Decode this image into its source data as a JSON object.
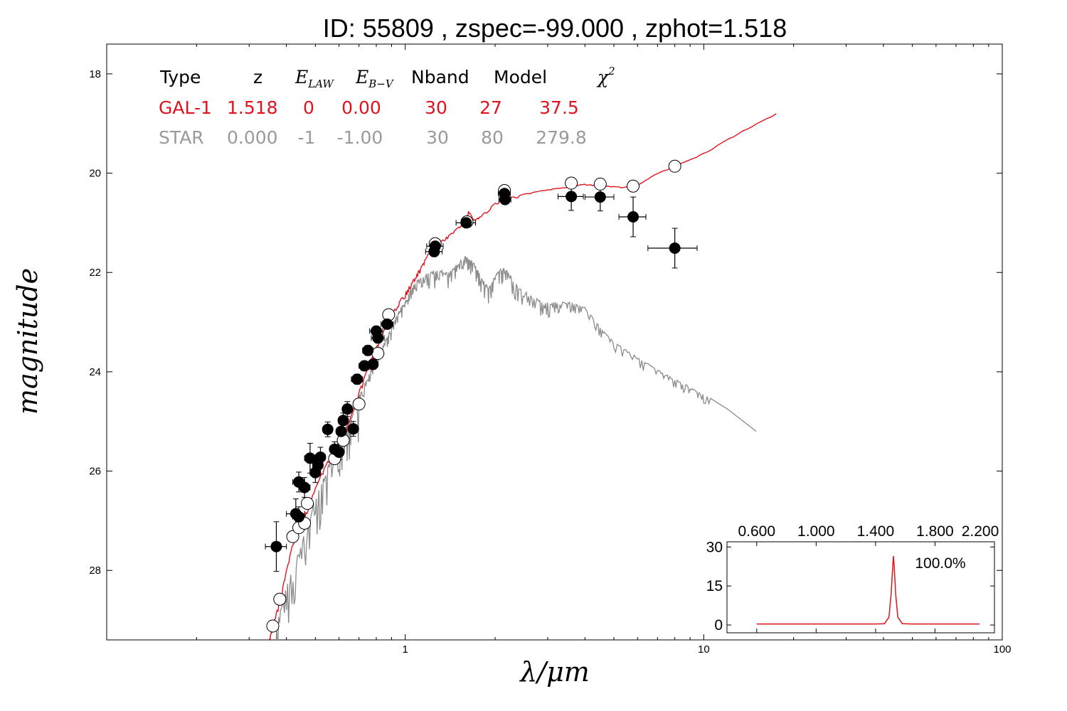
{
  "title": "ID:  55809 , zspec=-99.000 , zphot=1.518",
  "colors": {
    "galaxy": "#e0141e",
    "star": "#8c8c8c",
    "points": "#000000",
    "model_points": "#ffffff"
  },
  "chart_data": [
    {
      "type": "scatter",
      "xlabel": "λ/μm",
      "ylabel": "magnitude",
      "xscale": "log",
      "xlim": [
        0.1,
        100
      ],
      "ylim": [
        29.4,
        17.4
      ],
      "y_inverted": true,
      "xtick_labels": [
        "1",
        "10",
        "100"
      ],
      "ytick_labels": [
        "18",
        "20",
        "22",
        "24",
        "26",
        "28"
      ],
      "fit_table": {
        "headers": {
          "type": "Type",
          "z": "z",
          "elaw": "E",
          "elaw_sub": "LAW",
          "ebv": "E",
          "ebv_sub": "B−V",
          "nband": "Nband",
          "model": "Model",
          "chi2": "χ",
          "chi2_sup": "2"
        },
        "rows": [
          {
            "type": "GAL-1",
            "z": "1.518",
            "elaw": "0",
            "ebv": "0.00",
            "nband": "30",
            "model": "27",
            "chi2": "37.5",
            "color": "#e0141e"
          },
          {
            "type": "STAR",
            "z": "0.000",
            "elaw": "-1",
            "ebv": "-1.00",
            "nband": "30",
            "model": "80",
            "chi2": "279.8",
            "color": "#9a9a9a"
          }
        ]
      },
      "observed_points": [
        {
          "x": 0.37,
          "y": 27.52,
          "xerr": 0.03,
          "yerr": 0.5
        },
        {
          "x": 0.43,
          "y": 26.86,
          "xerr": 0.03,
          "yerr": 0.3
        },
        {
          "x": 0.44,
          "y": 26.92,
          "xerr": 0.02,
          "yerr": 0.2
        },
        {
          "x": 0.44,
          "y": 26.22,
          "xerr": 0.02,
          "yerr": 0.2
        },
        {
          "x": 0.46,
          "y": 26.33,
          "xerr": 0.02,
          "yerr": 0.2
        },
        {
          "x": 0.48,
          "y": 25.74,
          "xerr": 0.02,
          "yerr": 0.3
        },
        {
          "x": 0.5,
          "y": 26.03,
          "xerr": 0.02,
          "yerr": 0.2
        },
        {
          "x": 0.51,
          "y": 25.88,
          "xerr": 0.02,
          "yerr": 0.2
        },
        {
          "x": 0.52,
          "y": 25.72,
          "xerr": 0.02,
          "yerr": 0.2
        },
        {
          "x": 0.55,
          "y": 25.16,
          "xerr": 0.02,
          "yerr": 0.15
        },
        {
          "x": 0.58,
          "y": 25.56,
          "xerr": 0.02,
          "yerr": 0.15
        },
        {
          "x": 0.6,
          "y": 25.62,
          "xerr": 0.02,
          "yerr": 0.15
        },
        {
          "x": 0.61,
          "y": 25.2,
          "xerr": 0.02,
          "yerr": 0.15
        },
        {
          "x": 0.62,
          "y": 24.98,
          "xerr": 0.02,
          "yerr": 0.15
        },
        {
          "x": 0.64,
          "y": 24.75,
          "xerr": 0.02,
          "yerr": 0.15
        },
        {
          "x": 0.67,
          "y": 25.15,
          "xerr": 0.02,
          "yerr": 0.15
        },
        {
          "x": 0.69,
          "y": 24.15,
          "xerr": 0.03,
          "yerr": 0.1
        },
        {
          "x": 0.73,
          "y": 23.88,
          "xerr": 0.03,
          "yerr": 0.1
        },
        {
          "x": 0.75,
          "y": 23.57,
          "xerr": 0.03,
          "yerr": 0.1
        },
        {
          "x": 0.78,
          "y": 23.85,
          "xerr": 0.03,
          "yerr": 0.1
        },
        {
          "x": 0.8,
          "y": 23.18,
          "xerr": 0.04,
          "yerr": 0.1
        },
        {
          "x": 0.81,
          "y": 23.32,
          "xerr": 0.04,
          "yerr": 0.1
        },
        {
          "x": 0.87,
          "y": 23.04,
          "xerr": 0.04,
          "yerr": 0.1
        },
        {
          "x": 1.25,
          "y": 21.58,
          "xerr": 0.08,
          "yerr": 0.1
        },
        {
          "x": 1.26,
          "y": 21.47,
          "xerr": 0.08,
          "yerr": 0.1
        },
        {
          "x": 1.6,
          "y": 21.0,
          "xerr": 0.12,
          "yerr": 0.08
        },
        {
          "x": 2.15,
          "y": 20.41,
          "xerr": 0.1,
          "yerr": 0.08
        },
        {
          "x": 2.16,
          "y": 20.53,
          "xerr": 0.1,
          "yerr": 0.08
        },
        {
          "x": 3.6,
          "y": 20.47,
          "xerr": 0.35,
          "yerr": 0.28
        },
        {
          "x": 4.5,
          "y": 20.48,
          "xerr": 0.5,
          "yerr": 0.28
        },
        {
          "x": 5.8,
          "y": 20.88,
          "xerr": 0.6,
          "yerr": 0.4
        },
        {
          "x": 8.0,
          "y": 21.51,
          "xerr": 1.5,
          "yerr": 0.4
        }
      ],
      "model_points": [
        {
          "x": 0.36,
          "y": 29.12
        },
        {
          "x": 0.38,
          "y": 28.58
        },
        {
          "x": 0.42,
          "y": 27.32
        },
        {
          "x": 0.44,
          "y": 27.14
        },
        {
          "x": 0.46,
          "y": 27.05
        },
        {
          "x": 0.47,
          "y": 26.65
        },
        {
          "x": 0.58,
          "y": 25.75
        },
        {
          "x": 0.62,
          "y": 25.38
        },
        {
          "x": 0.7,
          "y": 24.65
        },
        {
          "x": 0.81,
          "y": 23.63
        },
        {
          "x": 0.88,
          "y": 22.85
        },
        {
          "x": 1.26,
          "y": 21.42
        },
        {
          "x": 1.61,
          "y": 20.98
        },
        {
          "x": 2.15,
          "y": 20.35
        },
        {
          "x": 3.6,
          "y": 20.2
        },
        {
          "x": 4.5,
          "y": 20.22
        },
        {
          "x": 5.8,
          "y": 20.26
        },
        {
          "x": 8.0,
          "y": 19.86
        }
      ],
      "galaxy_sed": [
        [
          0.35,
          29.4
        ],
        [
          0.36,
          29.1
        ],
        [
          0.38,
          28.6
        ],
        [
          0.4,
          28.0
        ],
        [
          0.42,
          27.45
        ],
        [
          0.45,
          27.05
        ],
        [
          0.48,
          26.6
        ],
        [
          0.52,
          26.1
        ],
        [
          0.56,
          25.7
        ],
        [
          0.6,
          25.4
        ],
        [
          0.65,
          25.0
        ],
        [
          0.7,
          24.4
        ],
        [
          0.75,
          23.9
        ],
        [
          0.8,
          23.5
        ],
        [
          0.85,
          23.15
        ],
        [
          0.9,
          22.85
        ],
        [
          0.95,
          22.6
        ],
        [
          1.0,
          22.4
        ],
        [
          1.05,
          22.2
        ],
        [
          1.1,
          22.0
        ],
        [
          1.15,
          21.8
        ],
        [
          1.2,
          21.6
        ],
        [
          1.3,
          21.4
        ],
        [
          1.4,
          21.25
        ],
        [
          1.5,
          21.1
        ],
        [
          1.6,
          21.0
        ],
        [
          1.63,
          20.75
        ],
        [
          1.7,
          20.95
        ],
        [
          1.8,
          20.85
        ],
        [
          2.0,
          20.6
        ],
        [
          2.2,
          20.5
        ],
        [
          2.5,
          20.42
        ],
        [
          3.0,
          20.33
        ],
        [
          3.5,
          20.28
        ],
        [
          4.0,
          20.22
        ],
        [
          4.5,
          20.25
        ],
        [
          5.0,
          20.27
        ],
        [
          5.8,
          20.28
        ],
        [
          7.0,
          20.0
        ],
        [
          8.0,
          19.86
        ],
        [
          10.0,
          19.6
        ],
        [
          13.0,
          19.2
        ],
        [
          17.5,
          18.8
        ]
      ],
      "star_sed": [
        [
          0.36,
          29.4
        ],
        [
          0.4,
          28.3
        ],
        [
          0.45,
          27.4
        ],
        [
          0.5,
          26.5
        ],
        [
          0.55,
          25.9
        ],
        [
          0.6,
          25.3
        ],
        [
          0.65,
          24.9
        ],
        [
          0.7,
          24.5
        ],
        [
          0.75,
          24.1
        ],
        [
          0.8,
          23.7
        ],
        [
          0.85,
          23.4
        ],
        [
          0.9,
          23.1
        ],
        [
          0.95,
          22.8
        ],
        [
          1.0,
          22.55
        ],
        [
          1.05,
          22.3
        ],
        [
          1.1,
          22.15
        ],
        [
          1.2,
          22.0
        ],
        [
          1.3,
          21.95
        ],
        [
          1.4,
          22.0
        ],
        [
          1.5,
          21.8
        ],
        [
          1.6,
          21.65
        ],
        [
          1.7,
          21.8
        ],
        [
          1.8,
          22.1
        ],
        [
          1.9,
          22.3
        ],
        [
          2.0,
          22.05
        ],
        [
          2.1,
          21.9
        ],
        [
          2.2,
          21.95
        ],
        [
          2.4,
          22.3
        ],
        [
          2.7,
          22.5
        ],
        [
          3.0,
          22.6
        ],
        [
          3.3,
          22.6
        ],
        [
          3.6,
          22.6
        ],
        [
          4.0,
          22.7
        ],
        [
          4.5,
          23.1
        ],
        [
          5.0,
          23.4
        ],
        [
          6.0,
          23.7
        ],
        [
          7.0,
          23.95
        ],
        [
          8.0,
          24.15
        ],
        [
          9.0,
          24.3
        ],
        [
          10.0,
          24.45
        ],
        [
          12.0,
          24.75
        ],
        [
          15.0,
          25.2
        ]
      ]
    },
    {
      "type": "line",
      "xlim": [
        0.4,
        2.2
      ],
      "ylim": [
        -3,
        32
      ],
      "xtick_labels": [
        "0.600",
        "1.000",
        "1.400",
        "1.800",
        "2.200"
      ],
      "ytick_labels": [
        "0",
        "15",
        "30"
      ],
      "annotation": "100.0%",
      "pdf": [
        [
          0.6,
          0.4
        ],
        [
          1.4,
          0.4
        ],
        [
          1.46,
          0.5
        ],
        [
          1.49,
          3
        ],
        [
          1.505,
          12
        ],
        [
          1.515,
          22
        ],
        [
          1.52,
          26.5
        ],
        [
          1.525,
          23
        ],
        [
          1.535,
          12
        ],
        [
          1.55,
          3
        ],
        [
          1.58,
          0.5
        ],
        [
          1.65,
          0.4
        ],
        [
          2.1,
          0.4
        ]
      ]
    }
  ]
}
